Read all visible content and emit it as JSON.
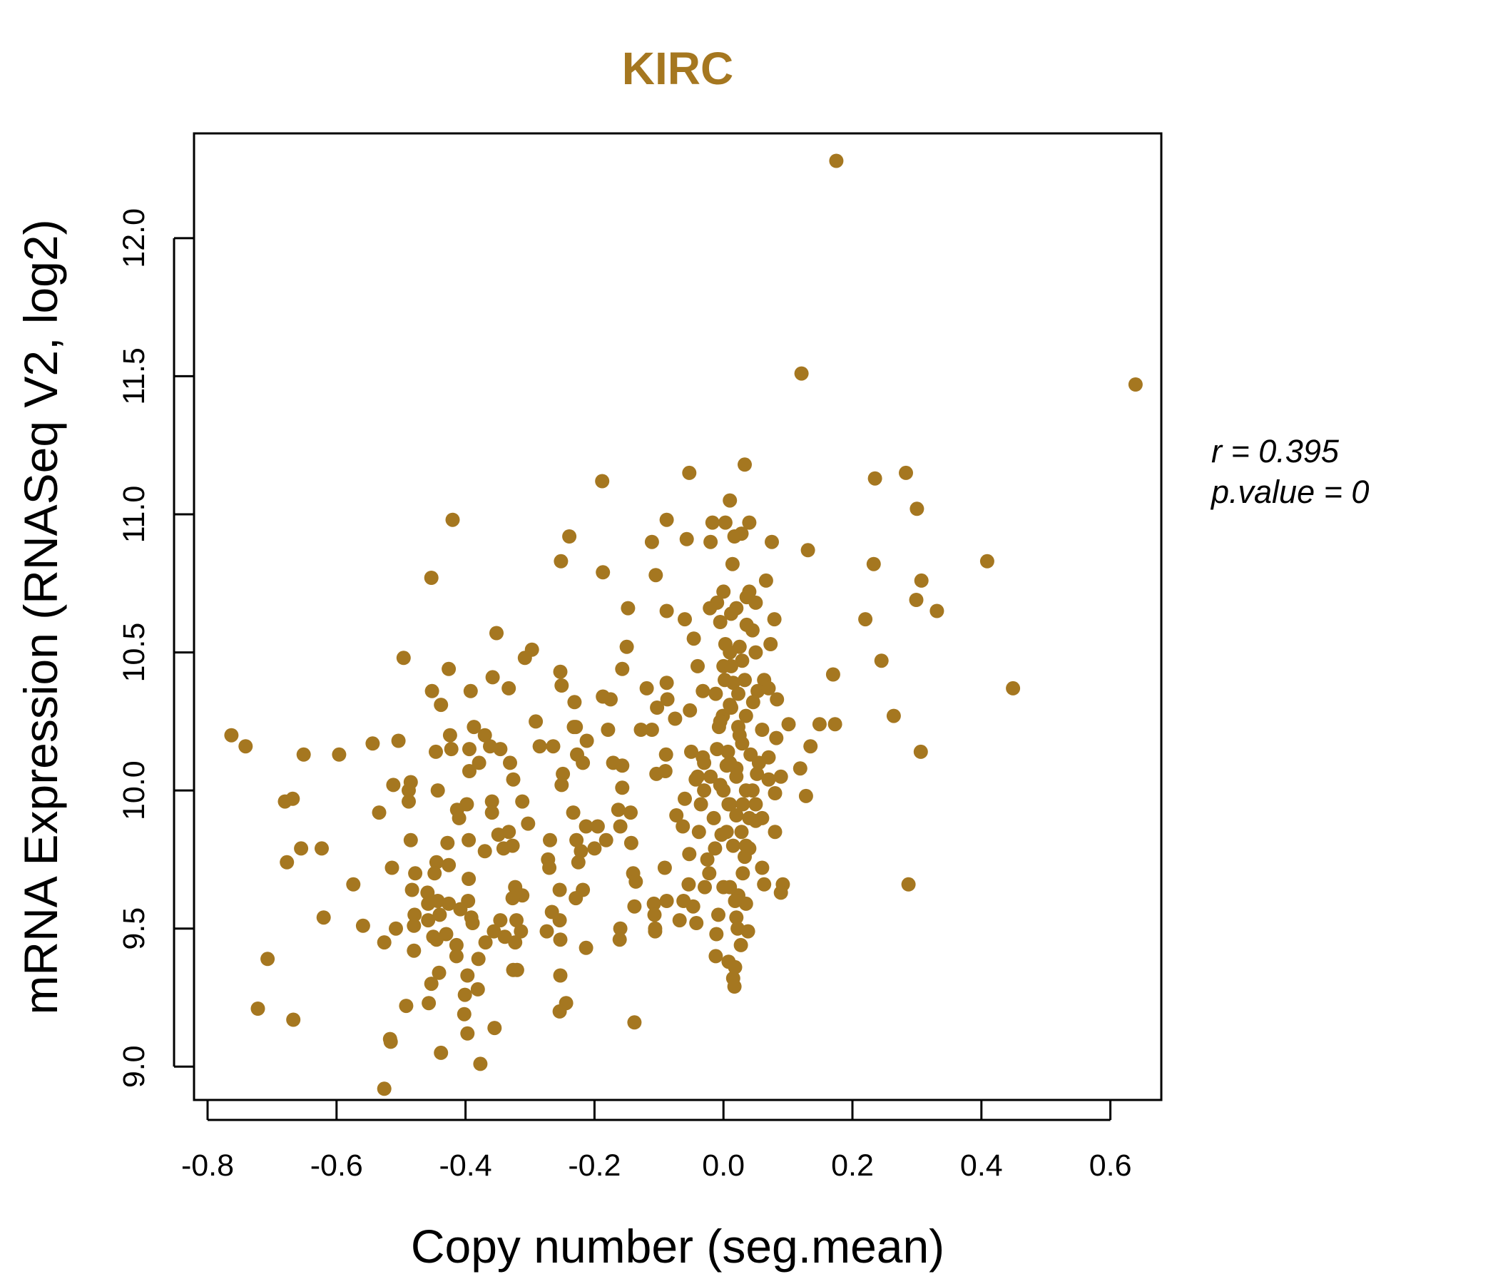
{
  "chart_data": {
    "type": "scatter",
    "title": "KIRC",
    "xlabel": "Copy number (seg.mean)",
    "ylabel": "mRNA Expression (RNASeq V2, log2)",
    "xlim": [
      -0.8,
      0.7
    ],
    "ylim": [
      8.9,
      12.4
    ],
    "x_ticks": [
      -0.8,
      -0.6,
      -0.4,
      -0.2,
      0.0,
      0.2,
      0.4,
      0.6
    ],
    "x_tick_labels": [
      "-0.8",
      "-0.6",
      "-0.4",
      "-0.2",
      "0.0",
      "0.2",
      "0.4",
      "0.6"
    ],
    "y_ticks": [
      9.0,
      9.5,
      10.0,
      10.5,
      11.0,
      11.5,
      12.0
    ],
    "y_tick_labels": [
      "9.0",
      "9.5",
      "10.0",
      "10.5",
      "11.0",
      "11.5",
      "12.0"
    ],
    "grid": false,
    "legend": "none",
    "point_color": "#a57720",
    "title_color": "#a57720",
    "stats": {
      "r": "r = 0.395",
      "p": "p.value = 0"
    },
    "points": [
      [
        0.175,
        12.28
      ],
      [
        0.121,
        11.51
      ],
      [
        0.639,
        11.47
      ],
      [
        0.033,
        11.18
      ],
      [
        -0.053,
        11.15
      ],
      [
        -0.188,
        11.12
      ],
      [
        0.283,
        11.15
      ],
      [
        0.235,
        11.13
      ],
      [
        0.3,
        11.02
      ],
      [
        0.01,
        11.05
      ],
      [
        -0.088,
        10.98
      ],
      [
        -0.017,
        10.97
      ],
      [
        0.003,
        10.97
      ],
      [
        0.04,
        10.97
      ],
      [
        -0.239,
        10.92
      ],
      [
        -0.111,
        10.9
      ],
      [
        -0.057,
        10.91
      ],
      [
        0.028,
        10.93
      ],
      [
        0.017,
        10.92
      ],
      [
        0.075,
        10.9
      ],
      [
        -0.02,
        10.9
      ],
      [
        -0.42,
        10.98
      ],
      [
        0.131,
        10.87
      ],
      [
        -0.252,
        10.83
      ],
      [
        0.409,
        10.83
      ],
      [
        0.233,
        10.82
      ],
      [
        0.014,
        10.82
      ],
      [
        -0.187,
        10.79
      ],
      [
        -0.105,
        10.78
      ],
      [
        -0.453,
        10.77
      ],
      [
        0.307,
        10.76
      ],
      [
        0.066,
        10.76
      ],
      [
        0.0,
        10.72
      ],
      [
        0.04,
        10.72
      ],
      [
        0.036,
        10.7
      ],
      [
        0.299,
        10.69
      ],
      [
        -0.01,
        10.68
      ],
      [
        0.05,
        10.68
      ],
      [
        0.331,
        10.65
      ],
      [
        -0.148,
        10.66
      ],
      [
        -0.088,
        10.65
      ],
      [
        0.012,
        10.64
      ],
      [
        -0.021,
        10.66
      ],
      [
        0.02,
        10.66
      ],
      [
        -0.06,
        10.62
      ],
      [
        0.079,
        10.62
      ],
      [
        0.22,
        10.62
      ],
      [
        0.036,
        10.6
      ],
      [
        -0.005,
        10.61
      ],
      [
        0.045,
        10.58
      ],
      [
        -0.352,
        10.57
      ],
      [
        -0.046,
        10.55
      ],
      [
        0.003,
        10.53
      ],
      [
        0.025,
        10.52
      ],
      [
        0.073,
        10.53
      ],
      [
        -0.15,
        10.52
      ],
      [
        -0.297,
        10.51
      ],
      [
        -0.308,
        10.48
      ],
      [
        -0.496,
        10.48
      ],
      [
        0.01,
        10.5
      ],
      [
        0.05,
        10.5
      ],
      [
        0.029,
        10.47
      ],
      [
        0.245,
        10.47
      ],
      [
        -0.04,
        10.45
      ],
      [
        0.0,
        10.45
      ],
      [
        -0.157,
        10.44
      ],
      [
        -0.426,
        10.44
      ],
      [
        -0.253,
        10.43
      ],
      [
        0.17,
        10.42
      ],
      [
        -0.358,
        10.41
      ],
      [
        -0.088,
        10.39
      ],
      [
        0.033,
        10.4
      ],
      [
        0.063,
        10.4
      ],
      [
        -0.452,
        10.36
      ],
      [
        -0.392,
        10.36
      ],
      [
        -0.251,
        10.38
      ],
      [
        -0.333,
        10.37
      ],
      [
        0.015,
        10.39
      ],
      [
        0.449,
        10.37
      ],
      [
        -0.119,
        10.37
      ],
      [
        -0.187,
        10.34
      ],
      [
        -0.175,
        10.33
      ],
      [
        0.023,
        10.35
      ],
      [
        -0.032,
        10.36
      ],
      [
        0.053,
        10.36
      ],
      [
        0.07,
        10.37
      ],
      [
        -0.231,
        10.32
      ],
      [
        -0.438,
        10.31
      ],
      [
        -0.087,
        10.33
      ],
      [
        0.083,
        10.33
      ],
      [
        -0.103,
        10.3
      ],
      [
        -0.052,
        10.29
      ],
      [
        0.01,
        10.31
      ],
      [
        0.046,
        10.32
      ],
      [
        0.264,
        10.27
      ],
      [
        -0.291,
        10.25
      ],
      [
        -0.075,
        10.26
      ],
      [
        -0.001,
        10.27
      ],
      [
        0.035,
        10.27
      ],
      [
        -0.387,
        10.23
      ],
      [
        -0.229,
        10.23
      ],
      [
        -0.179,
        10.22
      ],
      [
        -0.111,
        10.22
      ],
      [
        -0.232,
        10.23
      ],
      [
        0.101,
        10.24
      ],
      [
        0.149,
        10.24
      ],
      [
        0.173,
        10.24
      ],
      [
        -0.007,
        10.23
      ],
      [
        0.023,
        10.23
      ],
      [
        0.06,
        10.22
      ],
      [
        -0.128,
        10.22
      ],
      [
        -0.763,
        10.2
      ],
      [
        -0.424,
        10.2
      ],
      [
        -0.37,
        10.2
      ],
      [
        -0.504,
        10.18
      ],
      [
        -0.212,
        10.18
      ],
      [
        0.082,
        10.19
      ],
      [
        -0.544,
        10.17
      ],
      [
        -0.741,
        10.16
      ],
      [
        -0.264,
        10.16
      ],
      [
        -0.285,
        10.16
      ],
      [
        -0.422,
        10.15
      ],
      [
        -0.362,
        10.16
      ],
      [
        -0.394,
        10.15
      ],
      [
        0.029,
        10.17
      ],
      [
        0.135,
        10.16
      ],
      [
        -0.346,
        10.15
      ],
      [
        -0.05,
        10.14
      ],
      [
        -0.446,
        10.14
      ],
      [
        -0.227,
        10.13
      ],
      [
        -0.651,
        10.13
      ],
      [
        -0.596,
        10.13
      ],
      [
        0.007,
        10.14
      ],
      [
        0.306,
        10.14
      ],
      [
        -0.089,
        10.13
      ],
      [
        0.042,
        10.13
      ],
      [
        -0.032,
        10.12
      ],
      [
        0.07,
        10.12
      ],
      [
        -0.218,
        10.1
      ],
      [
        -0.171,
        10.1
      ],
      [
        -0.379,
        10.1
      ],
      [
        -0.331,
        10.1
      ],
      [
        -0.157,
        10.09
      ],
      [
        0.005,
        10.09
      ],
      [
        0.02,
        10.08
      ],
      [
        0.119,
        10.08
      ],
      [
        -0.394,
        10.07
      ],
      [
        -0.09,
        10.07
      ],
      [
        -0.104,
        10.06
      ],
      [
        -0.249,
        10.06
      ],
      [
        0.052,
        10.06
      ],
      [
        0.089,
        10.05
      ],
      [
        -0.043,
        10.04
      ],
      [
        -0.326,
        10.04
      ],
      [
        -0.485,
        10.03
      ],
      [
        0.07,
        10.04
      ],
      [
        -0.005,
        10.02
      ],
      [
        -0.251,
        10.02
      ],
      [
        -0.512,
        10.02
      ],
      [
        -0.157,
        10.01
      ],
      [
        -0.443,
        10.0
      ],
      [
        0.035,
        10.0
      ],
      [
        -0.488,
        10.0
      ],
      [
        0.08,
        9.99
      ],
      [
        0.128,
        9.98
      ],
      [
        -0.06,
        9.97
      ],
      [
        -0.668,
        9.97
      ],
      [
        -0.68,
        9.96
      ],
      [
        -0.312,
        9.96
      ],
      [
        -0.359,
        9.96
      ],
      [
        -0.488,
        9.96
      ],
      [
        0.01,
        9.95
      ],
      [
        -0.413,
        9.93
      ],
      [
        -0.398,
        9.95
      ],
      [
        -0.163,
        9.93
      ],
      [
        -0.534,
        9.92
      ],
      [
        -0.359,
        9.92
      ],
      [
        -0.144,
        9.92
      ],
      [
        -0.233,
        9.92
      ],
      [
        0.02,
        9.91
      ],
      [
        -0.073,
        9.91
      ],
      [
        -0.41,
        9.9
      ],
      [
        0.05,
        9.89
      ],
      [
        -0.303,
        9.88
      ],
      [
        -0.213,
        9.87
      ],
      [
        -0.195,
        9.87
      ],
      [
        -0.16,
        9.87
      ],
      [
        -0.063,
        9.87
      ],
      [
        -0.333,
        9.85
      ],
      [
        -0.349,
        9.84
      ],
      [
        -0.038,
        9.85
      ],
      [
        0.08,
        9.85
      ],
      [
        -0.003,
        9.84
      ],
      [
        -0.428,
        9.81
      ],
      [
        -0.395,
        9.82
      ],
      [
        -0.228,
        9.82
      ],
      [
        -0.182,
        9.82
      ],
      [
        -0.143,
        9.81
      ],
      [
        -0.269,
        9.82
      ],
      [
        -0.485,
        9.82
      ],
      [
        -0.327,
        9.8
      ],
      [
        -0.341,
        9.79
      ],
      [
        0.04,
        9.79
      ],
      [
        -0.655,
        9.79
      ],
      [
        -0.623,
        9.79
      ],
      [
        -0.013,
        9.79
      ],
      [
        -0.2,
        9.79
      ],
      [
        -0.221,
        9.78
      ],
      [
        -0.37,
        9.78
      ],
      [
        -0.053,
        9.77
      ],
      [
        0.033,
        9.76
      ],
      [
        -0.272,
        9.75
      ],
      [
        -0.225,
        9.74
      ],
      [
        -0.677,
        9.74
      ],
      [
        -0.445,
        9.74
      ],
      [
        -0.426,
        9.73
      ],
      [
        -0.27,
        9.72
      ],
      [
        -0.091,
        9.72
      ],
      [
        -0.514,
        9.72
      ],
      [
        0.06,
        9.72
      ],
      [
        -0.478,
        9.7
      ],
      [
        -0.448,
        9.7
      ],
      [
        -0.14,
        9.7
      ],
      [
        -0.395,
        9.68
      ],
      [
        -0.136,
        9.67
      ],
      [
        -0.054,
        9.66
      ],
      [
        0.287,
        9.66
      ],
      [
        -0.574,
        9.66
      ],
      [
        0.092,
        9.66
      ],
      [
        0.063,
        9.66
      ],
      [
        -0.323,
        9.65
      ],
      [
        -0.029,
        9.65
      ],
      [
        -0.254,
        9.64
      ],
      [
        -0.218,
        9.64
      ],
      [
        -0.483,
        9.64
      ],
      [
        -0.459,
        9.63
      ],
      [
        0.089,
        9.63
      ],
      [
        0.023,
        9.62
      ],
      [
        -0.312,
        9.62
      ],
      [
        -0.327,
        9.61
      ],
      [
        -0.229,
        9.61
      ],
      [
        -0.062,
        9.6
      ],
      [
        -0.108,
        9.59
      ],
      [
        -0.443,
        9.6
      ],
      [
        -0.458,
        9.59
      ],
      [
        -0.396,
        9.6
      ],
      [
        -0.426,
        9.59
      ],
      [
        -0.088,
        9.6
      ],
      [
        0.035,
        9.59
      ],
      [
        -0.138,
        9.58
      ],
      [
        -0.047,
        9.58
      ],
      [
        -0.408,
        9.57
      ],
      [
        -0.266,
        9.56
      ],
      [
        -0.44,
        9.55
      ],
      [
        -0.479,
        9.55
      ],
      [
        -0.107,
        9.55
      ],
      [
        -0.62,
        9.54
      ],
      [
        -0.254,
        9.53
      ],
      [
        -0.391,
        9.54
      ],
      [
        -0.346,
        9.53
      ],
      [
        -0.458,
        9.53
      ],
      [
        -0.321,
        9.53
      ],
      [
        -0.068,
        9.53
      ],
      [
        0.02,
        9.54
      ],
      [
        -0.559,
        9.51
      ],
      [
        -0.48,
        9.51
      ],
      [
        -0.389,
        9.52
      ],
      [
        -0.042,
        9.52
      ],
      [
        -0.106,
        9.5
      ],
      [
        -0.16,
        9.5
      ],
      [
        -0.508,
        9.5
      ],
      [
        -0.356,
        9.49
      ],
      [
        -0.314,
        9.49
      ],
      [
        -0.43,
        9.48
      ],
      [
        -0.45,
        9.47
      ],
      [
        -0.011,
        9.48
      ],
      [
        -0.106,
        9.49
      ],
      [
        0.038,
        9.49
      ],
      [
        -0.274,
        9.49
      ],
      [
        -0.339,
        9.47
      ],
      [
        -0.253,
        9.46
      ],
      [
        -0.161,
        9.46
      ],
      [
        -0.323,
        9.45
      ],
      [
        -0.445,
        9.46
      ],
      [
        -0.526,
        9.45
      ],
      [
        -0.414,
        9.44
      ],
      [
        0.027,
        9.44
      ],
      [
        -0.369,
        9.45
      ],
      [
        -0.213,
        9.43
      ],
      [
        -0.48,
        9.42
      ],
      [
        -0.012,
        9.4
      ],
      [
        -0.414,
        9.4
      ],
      [
        -0.38,
        9.39
      ],
      [
        -0.707,
        9.39
      ],
      [
        0.008,
        9.38
      ],
      [
        0.018,
        9.36
      ],
      [
        -0.441,
        9.34
      ],
      [
        -0.326,
        9.35
      ],
      [
        -0.32,
        9.35
      ],
      [
        -0.253,
        9.33
      ],
      [
        -0.397,
        9.33
      ],
      [
        0.015,
        9.32
      ],
      [
        -0.453,
        9.3
      ],
      [
        0.017,
        9.29
      ],
      [
        -0.381,
        9.28
      ],
      [
        -0.401,
        9.26
      ],
      [
        -0.457,
        9.23
      ],
      [
        -0.244,
        9.23
      ],
      [
        -0.492,
        9.22
      ],
      [
        -0.722,
        9.21
      ],
      [
        -0.254,
        9.2
      ],
      [
        -0.402,
        9.19
      ],
      [
        -0.667,
        9.17
      ],
      [
        -0.138,
        9.16
      ],
      [
        -0.355,
        9.14
      ],
      [
        -0.397,
        9.12
      ],
      [
        -0.517,
        9.1
      ],
      [
        -0.516,
        9.09
      ],
      [
        -0.438,
        9.05
      ],
      [
        -0.377,
        9.01
      ],
      [
        -0.526,
        8.92
      ],
      [
        -0.03,
        10.1
      ],
      [
        -0.02,
        10.05
      ],
      [
        -0.01,
        10.15
      ],
      [
        0.0,
        10.0
      ],
      [
        0.01,
        10.1
      ],
      [
        0.02,
        10.05
      ],
      [
        0.03,
        9.95
      ],
      [
        -0.015,
        9.9
      ],
      [
        0.005,
        9.85
      ],
      [
        0.015,
        9.8
      ],
      [
        0.025,
        10.2
      ],
      [
        -0.005,
        10.25
      ],
      [
        0.012,
        10.3
      ],
      [
        -0.025,
        9.75
      ],
      [
        0.03,
        9.7
      ],
      [
        0.0,
        9.65
      ],
      [
        0.018,
        9.6
      ],
      [
        -0.008,
        9.55
      ],
      [
        0.022,
        9.5
      ],
      [
        0.04,
        9.9
      ],
      [
        0.045,
        10.0
      ],
      [
        0.05,
        9.95
      ],
      [
        -0.035,
        9.95
      ],
      [
        -0.03,
        10.0
      ],
      [
        0.008,
        9.95
      ],
      [
        0.002,
        10.4
      ],
      [
        0.012,
        10.45
      ],
      [
        -0.012,
        10.35
      ],
      [
        0.028,
        9.85
      ],
      [
        0.035,
        9.8
      ],
      [
        -0.022,
        9.7
      ],
      [
        0.01,
        9.65
      ],
      [
        0.055,
        10.1
      ],
      [
        0.06,
        9.9
      ],
      [
        -0.04,
        10.05
      ]
    ]
  }
}
